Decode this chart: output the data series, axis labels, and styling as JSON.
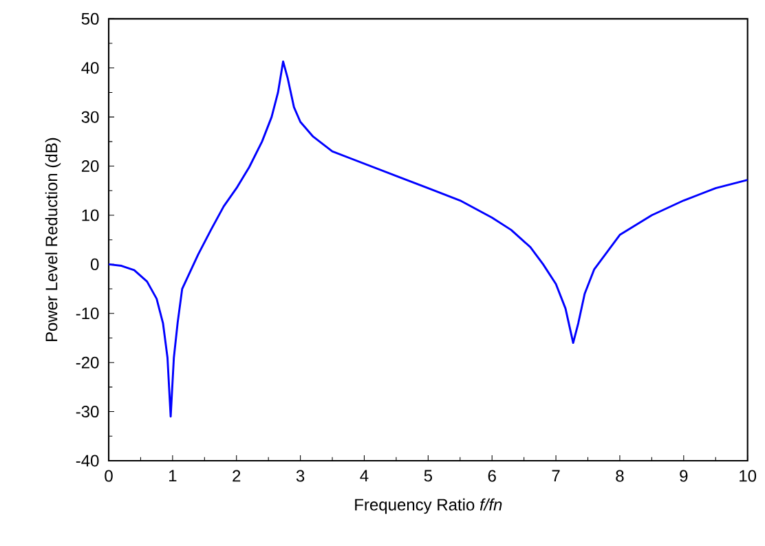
{
  "chart_data": {
    "type": "line",
    "xlabel": "Frequency Ratio *f/fn*",
    "ylabel": "Power Level Reduction (dB)",
    "x": [
      0,
      0.2,
      0.4,
      0.6,
      0.75,
      0.85,
      0.92,
      0.97,
      1.02,
      1.08,
      1.15,
      1.4,
      1.6,
      1.8,
      2.0,
      2.2,
      2.4,
      2.55,
      2.65,
      2.73,
      2.8,
      2.9,
      3.0,
      3.2,
      3.5,
      4.0,
      4.5,
      5.0,
      5.5,
      6.0,
      6.3,
      6.6,
      6.8,
      7.0,
      7.15,
      7.27,
      7.35,
      7.45,
      7.6,
      7.8,
      8.0,
      8.5,
      9.0,
      9.5,
      10
    ],
    "series": [
      {
        "color": "#0000ff",
        "values": [
          0,
          -0.3,
          -1.2,
          -3.5,
          -7,
          -12,
          -19,
          -31,
          -19,
          -11.8,
          -5,
          2,
          7,
          11.8,
          15.5,
          19.8,
          25,
          30,
          35,
          41.3,
          38,
          32,
          29,
          26,
          23,
          20.5,
          18,
          15.5,
          13,
          9.5,
          7,
          3.5,
          0,
          -4,
          -9,
          -16,
          -12,
          -6,
          -1,
          2.5,
          6,
          10,
          13,
          15.5,
          17.2
        ]
      }
    ],
    "xlim": [
      0,
      10
    ],
    "ylim": [
      -40,
      50
    ],
    "xticks": [
      0,
      1,
      2,
      3,
      4,
      5,
      6,
      7,
      8,
      9,
      10
    ],
    "yticks": [
      -40,
      -30,
      -20,
      -10,
      0,
      10,
      20,
      30,
      40,
      50
    ],
    "grid": false,
    "marker": "none",
    "line_style": "solid"
  }
}
